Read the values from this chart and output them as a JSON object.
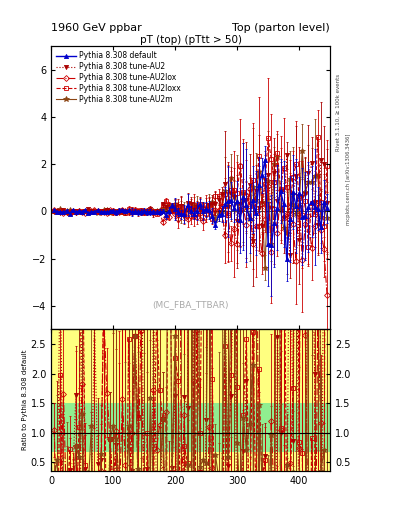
{
  "title_left": "1960 GeV ppbar",
  "title_right": "Top (parton level)",
  "plot_title": "pT (top) (pTtt > 50)",
  "watermark": "(MC_FBA_TTBAR)",
  "ylabel_ratio": "Ratio to Pythia 8.308 default",
  "right_label_top": "Rivet 3.1.10, ≥ 100k events",
  "right_label_bottom": "mcplots.cern.ch [arXiv:1306.3436]",
  "xlim": [
    0,
    450
  ],
  "ylim_main": [
    -5.0,
    7.0
  ],
  "ylim_ratio": [
    0.35,
    2.75
  ],
  "yticks_main": [
    -4,
    -2,
    0,
    2,
    4,
    6
  ],
  "yticks_ratio": [
    0.5,
    1.0,
    1.5,
    2.0,
    2.5
  ],
  "xticks": [
    0,
    100,
    200,
    300,
    400
  ],
  "series": [
    {
      "label": "Pythia 8.308 default",
      "color": "#0000cc",
      "linestyle": "-",
      "marker": "^",
      "markersize": 3,
      "linewidth": 1.0,
      "open": false
    },
    {
      "label": "Pythia 8.308 tune-AU2",
      "color": "#aa0000",
      "linestyle": ":",
      "marker": "v",
      "markersize": 3,
      "linewidth": 0.8,
      "open": false
    },
    {
      "label": "Pythia 8.308 tune-AU2lox",
      "color": "#cc0000",
      "linestyle": "-.",
      "marker": "D",
      "markersize": 3,
      "linewidth": 0.8,
      "open": true
    },
    {
      "label": "Pythia 8.308 tune-AU2loxx",
      "color": "#cc0000",
      "linestyle": "--",
      "marker": "s",
      "markersize": 3,
      "linewidth": 0.8,
      "open": true
    },
    {
      "label": "Pythia 8.308 tune-AU2m",
      "color": "#8B4513",
      "linestyle": "-",
      "marker": "*",
      "markersize": 4,
      "linewidth": 0.8,
      "open": false
    }
  ],
  "ratio_band_green": "#90ee90",
  "ratio_band_yellow": "#ffff80"
}
